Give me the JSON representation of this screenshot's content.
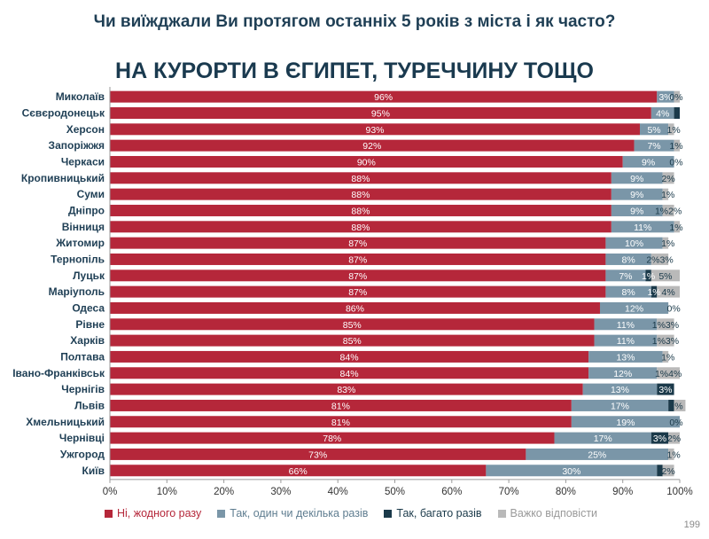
{
  "slide": {
    "question": "Чи виїжджали Ви протягом останніх 5 років з міста і як часто?",
    "subtitle": "НА КУРОРТИ В ЄГИПЕТ, ТУРЕЧЧИНУ ТОЩО",
    "page_number": "199"
  },
  "chart_data": {
    "type": "bar",
    "orientation": "horizontal",
    "stacked": true,
    "title": "",
    "xlabel": "",
    "ylabel": "",
    "xlim": [
      0,
      100
    ],
    "x_ticks": [
      "0%",
      "10%",
      "20%",
      "30%",
      "40%",
      "50%",
      "60%",
      "70%",
      "80%",
      "90%",
      "100%"
    ],
    "grid": false,
    "legend_position": "bottom",
    "categories": [
      "Миколаїв",
      "Сєвєродонецьк",
      "Херсон",
      "Запоріжжя",
      "Черкаси",
      "Кропивницький",
      "Суми",
      "Дніпро",
      "Вінниця",
      "Житомир",
      "Тернопіль",
      "Луцьк",
      "Маріуполь",
      "Одеса",
      "Рівне",
      "Харків",
      "Полтава",
      "Івано-Франківськ",
      "Чернігів",
      "Львів",
      "Хмельницький",
      "Чернівці",
      "Ужгород",
      "Київ"
    ],
    "series": [
      {
        "name": "Ні, жодного разу",
        "color": "#b5273a",
        "values": [
          96,
          95,
          93,
          92,
          90,
          88,
          88,
          88,
          88,
          87,
          87,
          87,
          87,
          86,
          85,
          85,
          84,
          84,
          83,
          81,
          81,
          78,
          73,
          66
        ]
      },
      {
        "name": "Так, один чи декілька разів",
        "color": "#7a96a8",
        "values": [
          3,
          4,
          5,
          7,
          9,
          9,
          9,
          9,
          11,
          10,
          8,
          7,
          8,
          12,
          11,
          11,
          13,
          12,
          13,
          17,
          19,
          17,
          25,
          30
        ]
      },
      {
        "name": "Так, багато разів",
        "color": "#1b3a4a",
        "values": [
          0,
          1,
          0,
          0,
          0,
          0,
          0,
          0,
          0,
          0,
          0,
          1,
          1,
          0,
          0,
          0,
          0,
          0,
          3,
          1,
          0,
          3,
          0,
          1
        ]
      },
      {
        "name": "Важко відповісти",
        "color": "#b9b9b9",
        "values": [
          1,
          0,
          1,
          1,
          0,
          2,
          1,
          2,
          1,
          1,
          3,
          5,
          4,
          0,
          3,
          3,
          1,
          4,
          0,
          2,
          0,
          2,
          1,
          2
        ]
      }
    ],
    "data_labels": [
      [
        "96%",
        "3%",
        "",
        "0%"
      ],
      [
        "95%",
        "4%",
        "",
        ""
      ],
      [
        "93%",
        "5%",
        "",
        "1%"
      ],
      [
        "92%",
        "7%",
        "",
        "1%"
      ],
      [
        "90%",
        "9%",
        "",
        "0%"
      ],
      [
        "88%",
        "9%",
        "",
        "2%"
      ],
      [
        "88%",
        "9%",
        "",
        "1%"
      ],
      [
        "88%",
        "9%",
        "",
        "1%2%"
      ],
      [
        "88%",
        "11%",
        "",
        "1%"
      ],
      [
        "87%",
        "10%",
        "",
        "1%"
      ],
      [
        "87%",
        "8%",
        "",
        "2%3%"
      ],
      [
        "87%",
        "7%",
        "1%",
        "5%"
      ],
      [
        "87%",
        "8%",
        "1%",
        "4%"
      ],
      [
        "86%",
        "12%",
        "",
        "0%"
      ],
      [
        "85%",
        "11%",
        "",
        "1%3%"
      ],
      [
        "85%",
        "11%",
        "",
        "1%3%"
      ],
      [
        "84%",
        "13%",
        "",
        "1%"
      ],
      [
        "84%",
        "12%",
        "",
        "1%4%"
      ],
      [
        "83%",
        "13%",
        "3%",
        ""
      ],
      [
        "81%",
        "17%",
        "",
        "2%"
      ],
      [
        "81%",
        "19%",
        "",
        "0%"
      ],
      [
        "78%",
        "17%",
        "3%",
        "2%"
      ],
      [
        "73%",
        "25%",
        "",
        "1%"
      ],
      [
        "66%",
        "30%",
        "",
        "2%"
      ]
    ]
  }
}
